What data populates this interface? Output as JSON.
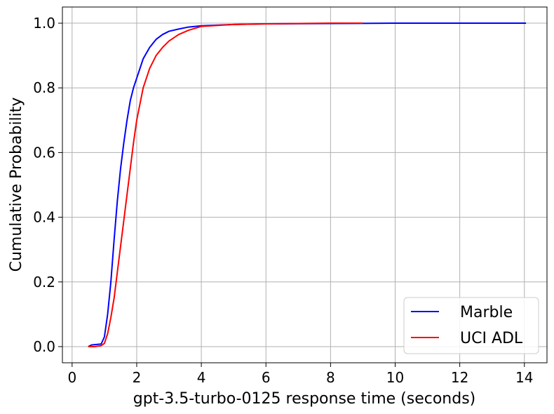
{
  "chart_data": {
    "type": "line",
    "title": "",
    "xlabel": "gpt-3.5-turbo-0125 response time (seconds)",
    "ylabel": "Cumulative Probability",
    "xlim": [
      -0.3,
      14.7
    ],
    "ylim": [
      -0.05,
      1.05
    ],
    "x_ticks": [
      0,
      2,
      4,
      6,
      8,
      10,
      12,
      14
    ],
    "y_ticks": [
      0.0,
      0.2,
      0.4,
      0.6,
      0.8,
      1.0
    ],
    "x_tick_labels": [
      "0",
      "2",
      "4",
      "6",
      "8",
      "10",
      "12",
      "14"
    ],
    "y_tick_labels": [
      "0.0",
      "0.2",
      "0.4",
      "0.6",
      "0.8",
      "1.0"
    ],
    "grid": true,
    "legend_position": "lower-right",
    "series": [
      {
        "name": "Marble",
        "color": "#0000ff",
        "x": [
          0.5,
          0.6,
          0.9,
          1.0,
          1.1,
          1.2,
          1.3,
          1.4,
          1.5,
          1.6,
          1.7,
          1.8,
          1.9,
          2.0,
          2.2,
          2.4,
          2.6,
          2.8,
          3.0,
          3.3,
          3.6,
          4.0,
          5.0,
          6.0,
          8.0,
          10.0,
          12.0,
          14.05
        ],
        "y": [
          0.0,
          0.005,
          0.008,
          0.03,
          0.1,
          0.2,
          0.33,
          0.45,
          0.55,
          0.63,
          0.7,
          0.76,
          0.8,
          0.83,
          0.89,
          0.925,
          0.95,
          0.965,
          0.975,
          0.982,
          0.988,
          0.992,
          0.996,
          0.998,
          0.999,
          1.0,
          1.0,
          1.0
        ]
      },
      {
        "name": "UCI ADL",
        "color": "#ff0000",
        "x": [
          0.5,
          0.7,
          0.9,
          1.0,
          1.1,
          1.2,
          1.3,
          1.4,
          1.5,
          1.6,
          1.7,
          1.8,
          1.9,
          2.0,
          2.2,
          2.4,
          2.6,
          2.8,
          3.0,
          3.3,
          3.6,
          4.0,
          5.0,
          6.0,
          7.0,
          8.0,
          9.0
        ],
        "y": [
          0.0,
          0.0,
          0.003,
          0.01,
          0.04,
          0.09,
          0.15,
          0.23,
          0.31,
          0.39,
          0.47,
          0.55,
          0.63,
          0.7,
          0.8,
          0.86,
          0.9,
          0.925,
          0.945,
          0.965,
          0.978,
          0.99,
          0.996,
          0.998,
          0.999,
          1.0,
          1.0
        ]
      }
    ]
  }
}
